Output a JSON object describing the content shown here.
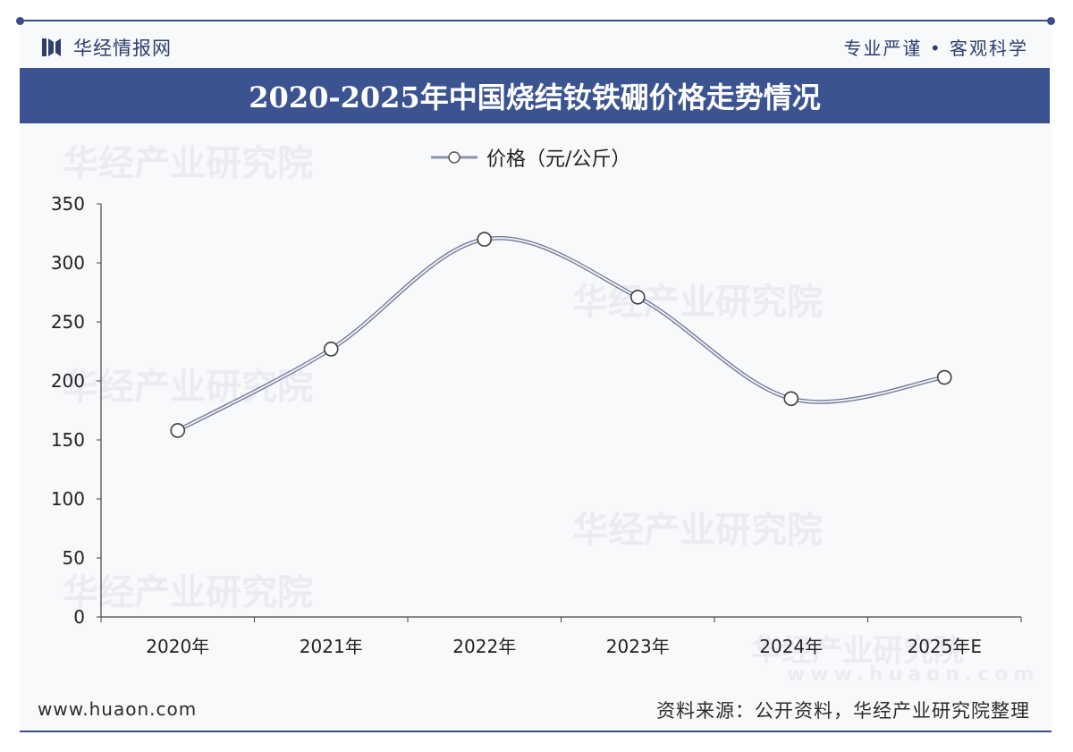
{
  "header": {
    "logo_text": "华经情报网",
    "slogan": "专业严谨 • 客观科学"
  },
  "title": "2020-2025年中国烧结钕铁硼价格走势情况",
  "watermark": "华经产业研究院",
  "watermark_url": "www.huaon.com",
  "footer": {
    "url": "www.huaon.com",
    "source": "资料来源：公开资料，华经产业研究院整理"
  },
  "colors": {
    "brand": "#3b5390",
    "series": "#8a93ad"
  },
  "chart_data": {
    "type": "line",
    "title": "2020-2025年中国烧结钕铁硼价格走势情况",
    "categories": [
      "2020年",
      "2021年",
      "2022年",
      "2023年",
      "2024年",
      "2025年E"
    ],
    "series": [
      {
        "name": "价格（元/公斤）",
        "values": [
          158,
          227,
          320,
          271,
          185,
          203
        ]
      }
    ],
    "ylim": [
      0,
      350
    ],
    "yticks": [
      0,
      50,
      100,
      150,
      200,
      250,
      300,
      350
    ],
    "smooth": true,
    "grid": false,
    "legend": "top-center"
  }
}
